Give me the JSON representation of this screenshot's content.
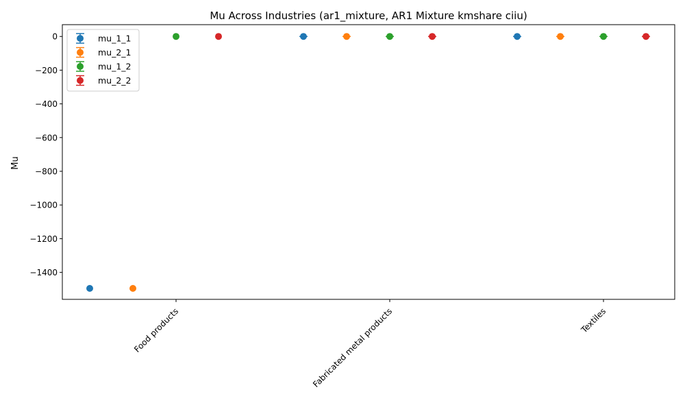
{
  "chart_data": {
    "type": "scatter",
    "title": "Mu Across Industries (ar1_mixture, AR1 Mixture kmshare ciiu)",
    "xlabel": "",
    "ylabel": "Mu",
    "categories": [
      "Food products",
      "Fabricated metal products",
      "Textiles"
    ],
    "ylim": [
      -1560,
      70
    ],
    "yticks": [
      0,
      -200,
      -400,
      -600,
      -800,
      -1000,
      -1200,
      -1400
    ],
    "ytick_labels": [
      "0",
      "−200",
      "−400",
      "−600",
      "−800",
      "−1000",
      "−1200",
      "−1400"
    ],
    "grid": false,
    "legend_position": "top-left",
    "series": [
      {
        "name": "mu_1_1",
        "color": "#1f77b4",
        "values": [
          -1495,
          0,
          0
        ],
        "error": [
          0,
          6,
          6
        ]
      },
      {
        "name": "mu_2_1",
        "color": "#ff7f0e",
        "values": [
          -1495,
          0,
          0
        ],
        "error": [
          0,
          6,
          6
        ]
      },
      {
        "name": "mu_1_2",
        "color": "#2ca02c",
        "values": [
          0,
          0,
          0
        ],
        "error": [
          0,
          6,
          6
        ]
      },
      {
        "name": "mu_2_2",
        "color": "#d62728",
        "values": [
          0,
          0,
          0
        ],
        "error": [
          0,
          6,
          6
        ]
      }
    ]
  }
}
